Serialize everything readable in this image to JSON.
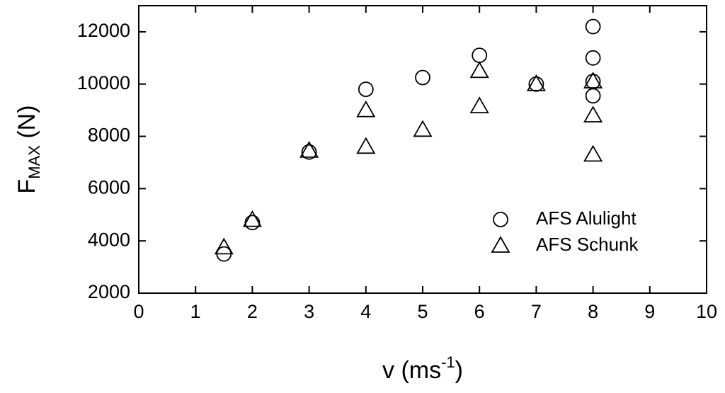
{
  "chart_data": {
    "type": "scatter",
    "xlabel": [
      "v (ms",
      "-1",
      ")"
    ],
    "ylabel": [
      "F",
      "MAX",
      " (N)"
    ],
    "xlim": [
      0,
      10
    ],
    "xticks": [
      0,
      1,
      2,
      3,
      4,
      5,
      6,
      7,
      8,
      9,
      10
    ],
    "ylim": [
      2000,
      13000
    ],
    "yticks": [
      2000,
      4000,
      6000,
      8000,
      10000,
      12000
    ],
    "legend": "right",
    "series": [
      {
        "name": "AFS Alulight",
        "marker": "circle",
        "color": "#000000",
        "x": [
          1.5,
          2,
          3,
          4,
          5,
          6,
          7,
          8,
          8,
          8,
          8
        ],
        "values": [
          3500,
          4700,
          7400,
          9800,
          10250,
          11100,
          10000,
          12200,
          11000,
          10100,
          9550
        ]
      },
      {
        "name": "AFS Schunk",
        "marker": "triangle",
        "color": "#000000",
        "x": [
          1.5,
          2,
          3,
          4,
          4,
          5,
          6,
          6,
          7,
          8,
          8,
          8
        ],
        "values": [
          3750,
          4800,
          7450,
          9000,
          7600,
          8250,
          10500,
          9150,
          10000,
          10100,
          8800,
          7300
        ]
      }
    ]
  }
}
